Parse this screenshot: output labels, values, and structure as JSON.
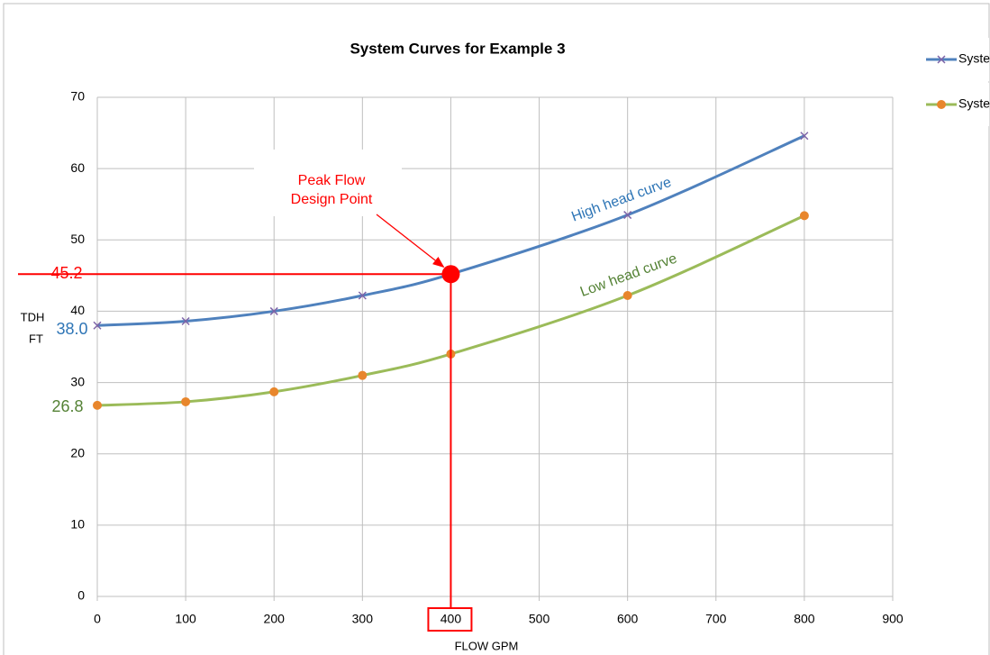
{
  "chart_data": {
    "type": "line",
    "title": "System Curves for Example 3",
    "x": [
      0,
      100,
      200,
      300,
      400,
      600,
      800
    ],
    "series": [
      {
        "name": "System Max",
        "color": "#4f81bd",
        "marker": "x",
        "marker_color": "#7e64a8",
        "values": [
          38.0,
          38.6,
          40.0,
          42.2,
          45.2,
          53.5,
          64.6
        ]
      },
      {
        "name": "System Min",
        "color": "#9bbb59",
        "marker": "circle",
        "marker_color": "#e8862c",
        "values": [
          26.8,
          27.3,
          28.7,
          31.0,
          34.0,
          42.2,
          53.4
        ]
      }
    ],
    "xlim": [
      0,
      900
    ],
    "xticks": [
      0,
      100,
      200,
      300,
      400,
      500,
      600,
      700,
      800,
      900
    ],
    "ylim": [
      0,
      70
    ],
    "yticks": [
      0,
      10,
      20,
      30,
      40,
      50,
      60,
      70
    ],
    "grid": true,
    "legend": "top-right",
    "xlabel": "FLOW GPM",
    "ylabel": [
      "TDH",
      "FT"
    ],
    "design_point": {
      "x": 400,
      "y": 45.2,
      "label": [
        "Peak Flow",
        "Design Point"
      ],
      "color": "#ff0000"
    },
    "annotations": [
      {
        "text": "38.0",
        "color": "#2e75b6"
      },
      {
        "text": "26.8",
        "color": "#548235"
      },
      {
        "text": "High head curve",
        "color": "#2e75b6"
      },
      {
        "text": "Low head curve",
        "color": "#548235"
      }
    ]
  }
}
